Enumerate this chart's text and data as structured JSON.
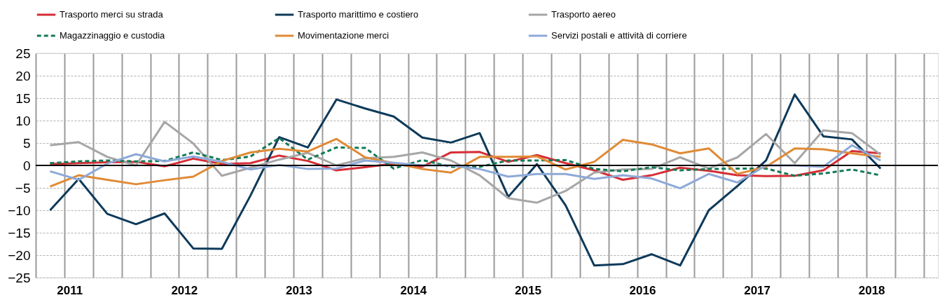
{
  "chart_data": {
    "type": "line",
    "x": [
      2011,
      2011.25,
      2011.5,
      2011.75,
      2012,
      2012.25,
      2012.5,
      2012.75,
      2013,
      2013.25,
      2013.5,
      2013.75,
      2014,
      2014.25,
      2014.5,
      2014.75,
      2015,
      2015.25,
      2015.5,
      2015.75,
      2016,
      2016.25,
      2016.5,
      2016.75,
      2017,
      2017.25,
      2017.5,
      2017.75,
      2018,
      2018.25
    ],
    "series": [
      {
        "name": "Trasporto merci su strada",
        "color": "#d62d35",
        "line_style": "solid",
        "values": [
          0.3,
          0.5,
          0.7,
          0.8,
          -0.2,
          1.5,
          0.3,
          0.5,
          2.2,
          1.0,
          -1.1,
          -0.4,
          0.4,
          -0.3,
          2.9,
          3.0,
          0.8,
          2.3,
          0.5,
          -1.1,
          -3.2,
          -2.2,
          -0.5,
          -1.2,
          -2.2,
          -2.4,
          -2.3,
          -1.1,
          3.2,
          2.7
        ]
      },
      {
        "name": "Trasporto marittimo e costiero",
        "color": "#0e3a5a",
        "line_style": "solid",
        "values": [
          -10,
          -3,
          -10.8,
          -13.1,
          -10.7,
          -18.5,
          -18.6,
          -6.7,
          6.3,
          4.0,
          14.7,
          12.7,
          10.9,
          6.2,
          5.1,
          7.2,
          -7.0,
          0.3,
          -8.9,
          -22.3,
          -22.0,
          -19.8,
          -22.3,
          -10.0,
          -4.6,
          1.1,
          15.8,
          6.5,
          5.8,
          -0.7
        ]
      },
      {
        "name": "Trasporto aereo",
        "color": "#a6a6a6",
        "line_style": "solid",
        "values": [
          4.5,
          5.2,
          1.9,
          0,
          9.7,
          4.9,
          -2.3,
          -0.5,
          1.3,
          2.8,
          0,
          1.6,
          1.9,
          2.9,
          1.1,
          -2.2,
          -7.3,
          -8.3,
          -5.7,
          -1.6,
          -0.9,
          -0.8,
          1.8,
          -0.7,
          1.8,
          7.0,
          0.5,
          7.8,
          7.2,
          2.4
        ]
      },
      {
        "name": "Magazzinaggio e custodia",
        "color": "#127a55",
        "line_style": "dashed",
        "values": [
          0.5,
          0.9,
          1.1,
          0.9,
          1.0,
          2.9,
          1.2,
          2.0,
          6.1,
          1.3,
          4.0,
          3.9,
          -0.7,
          1.2,
          -0.3,
          -0.3,
          1.1,
          1.1,
          1.2,
          -0.8,
          -1.3,
          -0.4,
          -1.1,
          -0.8,
          -0.7,
          -0.7,
          -2.3,
          -1.8,
          -0.9,
          -2.2
        ]
      },
      {
        "name": "Movimentazione merci",
        "color": "#e08a35",
        "line_style": "solid",
        "values": [
          -4.7,
          -2.2,
          -3.2,
          -4.2,
          -3.3,
          -2.5,
          1.0,
          2.9,
          3.7,
          3.1,
          5.9,
          1.8,
          0.5,
          -0.8,
          -1.6,
          1.9,
          1.9,
          2.0,
          -0.9,
          0.8,
          5.7,
          4.7,
          2.7,
          3.8,
          -1.9,
          -0.3,
          3.8,
          3.6,
          2.7,
          1.9
        ]
      },
      {
        "name": "Servizi postali e attività di corriere",
        "color": "#8ea9d8",
        "line_style": "solid",
        "values": [
          -1.3,
          -3.2,
          0.4,
          2.5,
          0.9,
          2.0,
          0.8,
          -0.9,
          0.1,
          -0.8,
          -0.7,
          1.1,
          0.6,
          0,
          0,
          -0.8,
          -2.5,
          -1.9,
          -1.9,
          -3.0,
          -2.2,
          -2.9,
          -5.1,
          -1.9,
          -3.8,
          0,
          0,
          -0.3,
          4.5,
          1.1
        ]
      }
    ],
    "xlim": [
      2010.875,
      2018.75
    ],
    "xticks": [
      {
        "value": 2010.875,
        "label": null
      },
      {
        "value": 2011.125,
        "label": null
      },
      {
        "value": 2011.375,
        "label": null
      },
      {
        "value": 2011.625,
        "label": null
      },
      {
        "value": 2011.875,
        "label": null
      },
      {
        "value": 2012.125,
        "label": null
      },
      {
        "value": 2012.375,
        "label": null
      },
      {
        "value": 2012.625,
        "label": null
      },
      {
        "value": 2012.875,
        "label": null
      },
      {
        "value": 2013.125,
        "label": null
      },
      {
        "value": 2013.375,
        "label": null
      },
      {
        "value": 2013.625,
        "label": null
      },
      {
        "value": 2013.875,
        "label": null
      },
      {
        "value": 2014.125,
        "label": null
      },
      {
        "value": 2014.375,
        "label": null
      },
      {
        "value": 2014.625,
        "label": null
      },
      {
        "value": 2014.875,
        "label": null
      },
      {
        "value": 2015.125,
        "label": null
      },
      {
        "value": 2015.375,
        "label": null
      },
      {
        "value": 2015.625,
        "label": null
      },
      {
        "value": 2015.875,
        "label": null
      },
      {
        "value": 2016.125,
        "label": null
      },
      {
        "value": 2016.375,
        "label": null
      },
      {
        "value": 2016.625,
        "label": null
      },
      {
        "value": 2016.875,
        "label": null
      },
      {
        "value": 2017.125,
        "label": null
      },
      {
        "value": 2017.375,
        "label": null
      },
      {
        "value": 2017.625,
        "label": null
      },
      {
        "value": 2017.875,
        "label": null
      },
      {
        "value": 2018.125,
        "label": null
      },
      {
        "value": 2018.375,
        "label": null
      },
      {
        "value": 2018.625,
        "label": null
      },
      {
        "value": 2011.17,
        "label": "2011"
      },
      {
        "value": 2012.17,
        "label": "2012"
      },
      {
        "value": 2013.17,
        "label": "2013"
      },
      {
        "value": 2014.17,
        "label": "2014"
      },
      {
        "value": 2015.17,
        "label": "2015"
      },
      {
        "value": 2016.17,
        "label": "2016"
      },
      {
        "value": 2017.17,
        "label": "2017"
      },
      {
        "value": 2018.17,
        "label": "2018"
      }
    ],
    "ylim": [
      -25,
      25
    ],
    "yticks": [
      -25,
      -20,
      -15,
      -10,
      -5,
      0,
      5,
      10,
      15,
      20,
      25
    ],
    "grid": true,
    "legend": "top",
    "marker": "none",
    "ref_lines": [
      {
        "axis": "y",
        "value": 0,
        "label": null,
        "color": "#000000"
      }
    ]
  }
}
